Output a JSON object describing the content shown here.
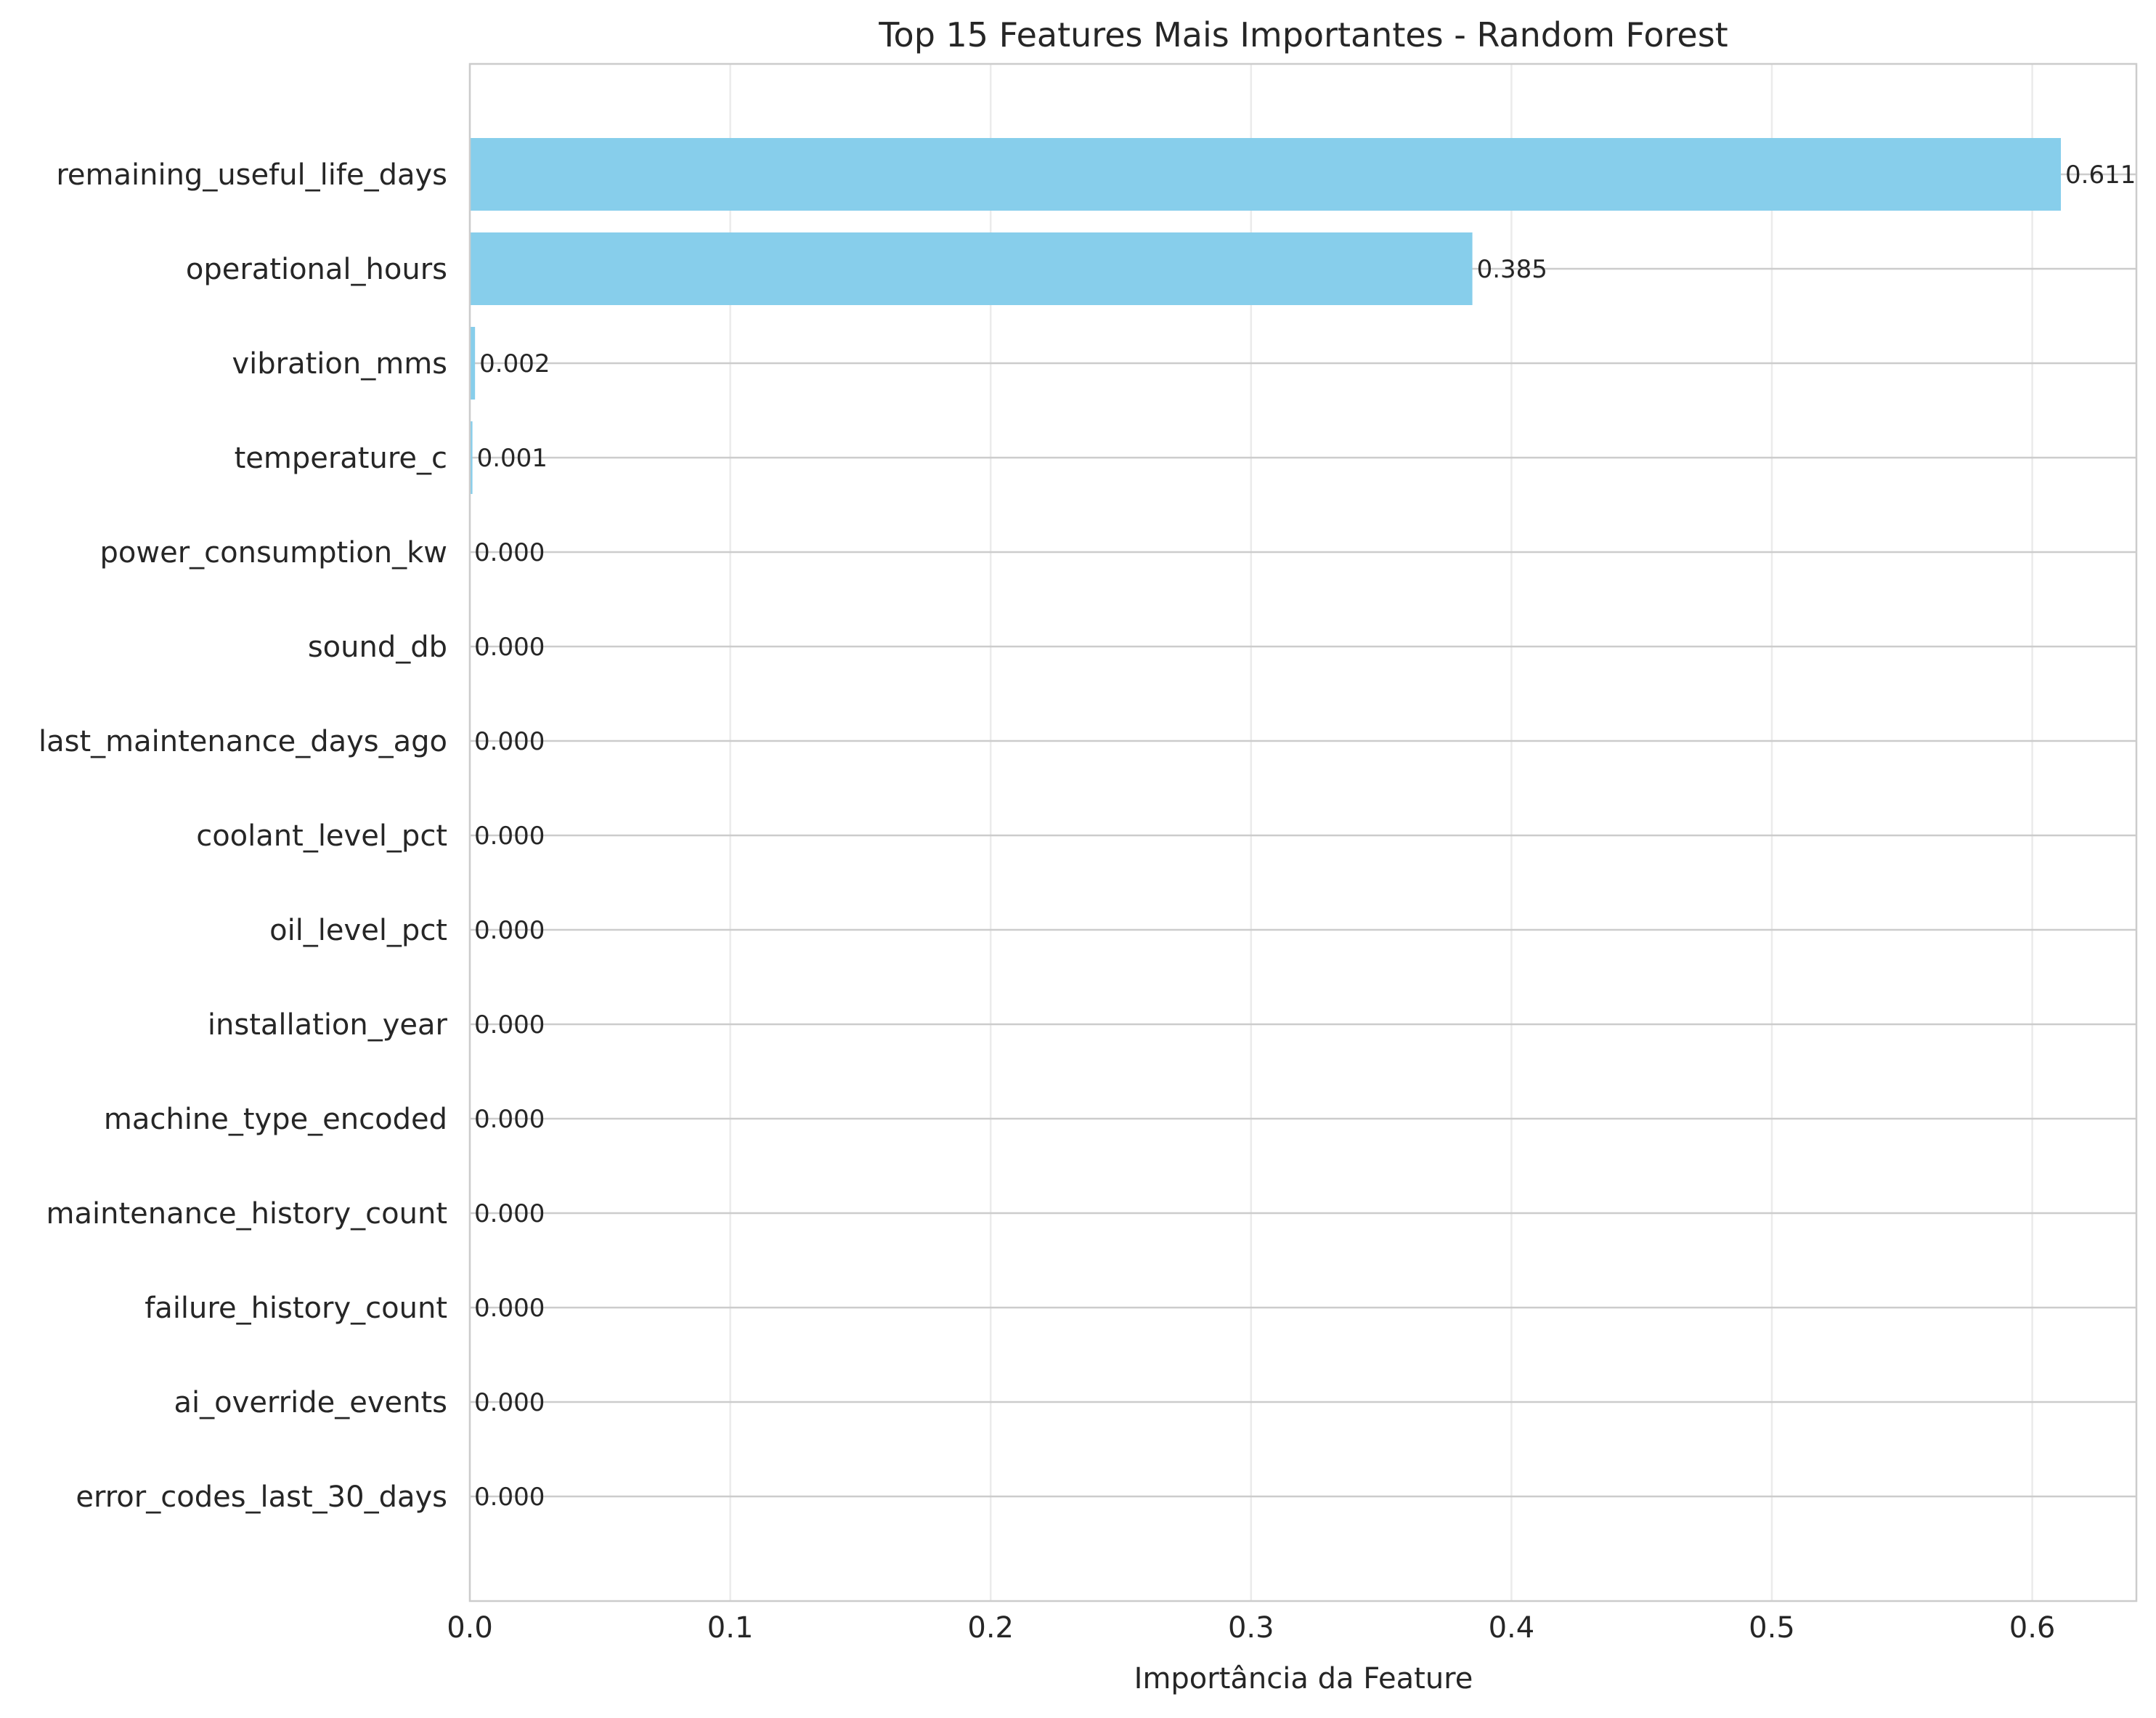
{
  "chart_data": {
    "type": "bar",
    "orientation": "horizontal",
    "title": "Top 15 Features Mais Importantes - Random Forest",
    "xlabel": "Importância da Feature",
    "ylabel": "",
    "xlim": [
      0,
      0.64
    ],
    "x_ticks": [
      "0.0",
      "0.1",
      "0.2",
      "0.3",
      "0.4",
      "0.5",
      "0.6"
    ],
    "grid": true,
    "bar_color": "#87ceeb",
    "categories": [
      "remaining_useful_life_days",
      "operational_hours",
      "vibration_mms",
      "temperature_c",
      "power_consumption_kw",
      "sound_db",
      "last_maintenance_days_ago",
      "coolant_level_pct",
      "oil_level_pct",
      "installation_year",
      "machine_type_encoded",
      "maintenance_history_count",
      "failure_history_count",
      "ai_override_events",
      "error_codes_last_30_days"
    ],
    "values": [
      0.611,
      0.385,
      0.002,
      0.001,
      0.0,
      0.0,
      0.0,
      0.0,
      0.0,
      0.0,
      0.0,
      0.0,
      0.0,
      0.0,
      0.0
    ],
    "value_labels": [
      "0.611",
      "0.385",
      "0.002",
      "0.001",
      "0.000",
      "0.000",
      "0.000",
      "0.000",
      "0.000",
      "0.000",
      "0.000",
      "0.000",
      "0.000",
      "0.000",
      "0.000"
    ]
  }
}
